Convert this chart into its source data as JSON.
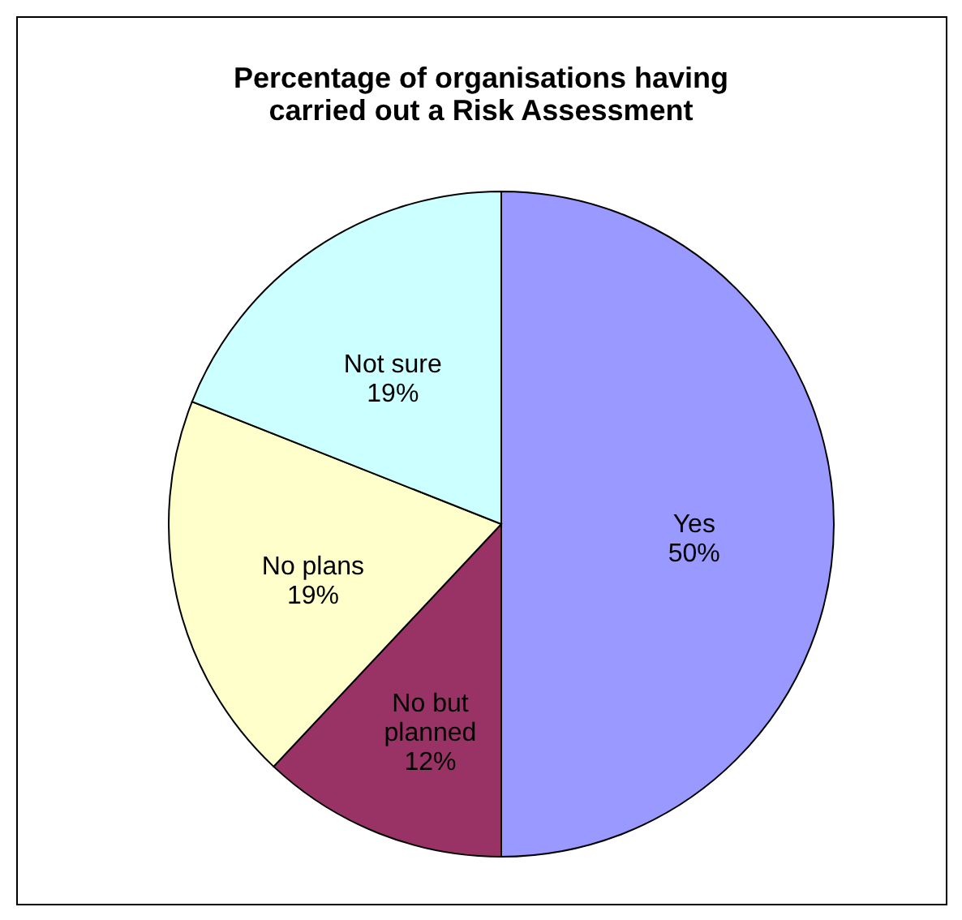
{
  "chart_data": {
    "type": "pie",
    "title": "Percentage of organisations having\ncarried out a Risk Assessment",
    "categories": [
      "Yes",
      "No but\nplanned",
      "No plans",
      "Not sure"
    ],
    "values": [
      50,
      12,
      19,
      19
    ],
    "value_labels": [
      "50%",
      "12%",
      "19%",
      "19%"
    ],
    "colors": [
      "#9999ff",
      "#993366",
      "#ffffcc",
      "#ccffff"
    ]
  }
}
